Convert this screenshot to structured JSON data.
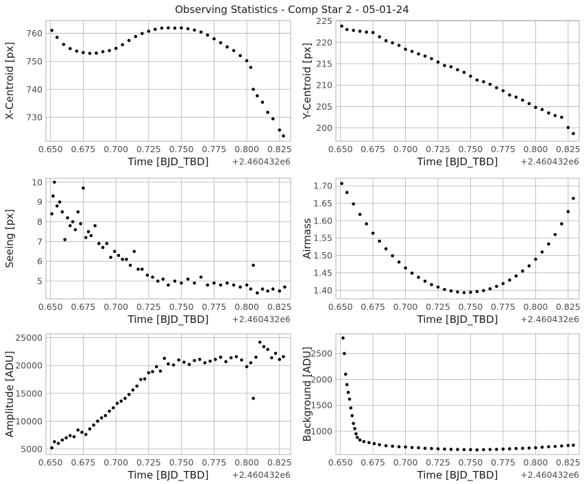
{
  "figure": {
    "title": "Observing Statistics - Comp Star 2 - 05-01-24",
    "colors": {
      "points": "#000000",
      "grid": "#b0b0b0",
      "text": "#1a1a1a",
      "tick_text": "#4a4a4a"
    }
  },
  "chart_data": [
    {
      "type": "scatter",
      "xlabel": "Time [BJD_TBD]",
      "ylabel": "X-Centroid [px]",
      "x_offset_label": "+2.460432e6",
      "xlim": [
        0.6465,
        0.8335
      ],
      "ylim": [
        721.5,
        764.5
      ],
      "xticks": [
        0.65,
        0.675,
        0.7,
        0.725,
        0.75,
        0.775,
        0.8,
        0.825
      ],
      "xtick_labels": [
        "0.650",
        "0.675",
        "0.700",
        "0.725",
        "0.750",
        "0.775",
        "0.800",
        "0.825"
      ],
      "yticks": [
        730,
        740,
        750,
        760
      ],
      "ytick_labels": [
        "730",
        "740",
        "750",
        "760"
      ],
      "grid": true,
      "x": [
        0.651,
        0.655,
        0.66,
        0.665,
        0.67,
        0.675,
        0.68,
        0.685,
        0.69,
        0.695,
        0.7,
        0.705,
        0.71,
        0.715,
        0.72,
        0.725,
        0.73,
        0.735,
        0.74,
        0.745,
        0.75,
        0.755,
        0.76,
        0.765,
        0.77,
        0.775,
        0.78,
        0.785,
        0.79,
        0.795,
        0.8,
        0.803,
        0.805,
        0.808,
        0.812,
        0.816,
        0.82,
        0.825,
        0.828
      ],
      "y": [
        761,
        758.5,
        756,
        754.5,
        753.6,
        753.1,
        752.8,
        752.9,
        753.4,
        753.8,
        754.6,
        755.9,
        757.4,
        758.8,
        759.9,
        760.7,
        761.4,
        761.8,
        761.9,
        761.8,
        761.9,
        761.6,
        761.1,
        760.4,
        759.3,
        758,
        756.6,
        755.1,
        753.8,
        752,
        750.2,
        747.8,
        740,
        737.7,
        735.4,
        731.8,
        729.5,
        725.5,
        723.4
      ]
    },
    {
      "type": "scatter",
      "xlabel": "Time [BJD_TBD]",
      "ylabel": "Y-Centroid [px]",
      "x_offset_label": "+2.460432e6",
      "xlim": [
        0.6465,
        0.8335
      ],
      "ylim": [
        196.9,
        225.1
      ],
      "xticks": [
        0.65,
        0.675,
        0.7,
        0.725,
        0.75,
        0.775,
        0.8,
        0.825
      ],
      "xtick_labels": [
        "0.650",
        "0.675",
        "0.700",
        "0.725",
        "0.750",
        "0.775",
        "0.800",
        "0.825"
      ],
      "yticks": [
        200,
        205,
        210,
        215,
        220,
        225
      ],
      "ytick_labels": [
        "200",
        "205",
        "210",
        "215",
        "220",
        "225"
      ],
      "grid": true,
      "x": [
        0.651,
        0.655,
        0.66,
        0.665,
        0.67,
        0.675,
        0.68,
        0.685,
        0.69,
        0.695,
        0.7,
        0.705,
        0.71,
        0.715,
        0.72,
        0.725,
        0.73,
        0.735,
        0.74,
        0.745,
        0.75,
        0.755,
        0.76,
        0.765,
        0.77,
        0.775,
        0.78,
        0.785,
        0.79,
        0.795,
        0.8,
        0.805,
        0.81,
        0.815,
        0.82,
        0.825,
        0.829
      ],
      "y": [
        223.8,
        223,
        222.8,
        222.6,
        222.4,
        222.3,
        221.3,
        220.4,
        219.9,
        219.3,
        218.4,
        217.9,
        217.3,
        216.8,
        216.2,
        215.4,
        214.6,
        214.3,
        213.6,
        213,
        212.1,
        211.2,
        210.8,
        210.2,
        209.4,
        208.7,
        207.7,
        207.2,
        206.5,
        205.7,
        204.8,
        204.3,
        203.5,
        202.9,
        202.5,
        200.1,
        198.7
      ]
    },
    {
      "type": "scatter",
      "xlabel": "Time [BJD_TBD]",
      "ylabel": "Seeing [px]",
      "x_offset_label": "+2.460432e6",
      "xlim": [
        0.6465,
        0.8335
      ],
      "ylim": [
        4.1,
        10.2
      ],
      "xticks": [
        0.65,
        0.675,
        0.7,
        0.725,
        0.75,
        0.775,
        0.8,
        0.825
      ],
      "xtick_labels": [
        "0.650",
        "0.675",
        "0.700",
        "0.725",
        "0.750",
        "0.775",
        "0.800",
        "0.825"
      ],
      "yticks": [
        5,
        6,
        7,
        8,
        9,
        10
      ],
      "ytick_labels": [
        "5",
        "6",
        "7",
        "8",
        "9",
        "10"
      ],
      "grid": true,
      "x": [
        0.651,
        0.652,
        0.653,
        0.655,
        0.657,
        0.659,
        0.661,
        0.663,
        0.665,
        0.667,
        0.669,
        0.671,
        0.673,
        0.675,
        0.677,
        0.679,
        0.681,
        0.684,
        0.687,
        0.69,
        0.693,
        0.696,
        0.699,
        0.702,
        0.705,
        0.708,
        0.711,
        0.714,
        0.717,
        0.72,
        0.724,
        0.728,
        0.732,
        0.736,
        0.74,
        0.745,
        0.75,
        0.755,
        0.76,
        0.765,
        0.77,
        0.775,
        0.78,
        0.785,
        0.79,
        0.795,
        0.8,
        0.803,
        0.805,
        0.808,
        0.812,
        0.816,
        0.82,
        0.825,
        0.829
      ],
      "y": [
        8.4,
        9.3,
        10,
        8.8,
        9,
        8.5,
        7.1,
        8.2,
        7.8,
        8,
        7.6,
        8.5,
        7.9,
        9.7,
        7.2,
        7.5,
        7.3,
        7.8,
        6.9,
        6.7,
        6.9,
        6.2,
        6.5,
        6.3,
        6.1,
        6.1,
        5.8,
        6.5,
        5.6,
        5.6,
        5.3,
        5.2,
        5,
        5.1,
        4.8,
        5,
        4.9,
        5.1,
        4.9,
        5.2,
        4.8,
        4.9,
        4.8,
        4.9,
        4.8,
        4.7,
        4.8,
        4.6,
        5.8,
        4.4,
        4.6,
        4.5,
        4.6,
        4.5,
        4.7
      ]
    },
    {
      "type": "scatter",
      "xlabel": "Time [BJD_TBD]",
      "ylabel": "Airmass",
      "x_offset_label": "+2.460432e6",
      "xlim": [
        0.6465,
        0.8335
      ],
      "ylim": [
        1.375,
        1.722
      ],
      "xticks": [
        0.65,
        0.675,
        0.7,
        0.725,
        0.75,
        0.775,
        0.8,
        0.825
      ],
      "xtick_labels": [
        "0.650",
        "0.675",
        "0.700",
        "0.725",
        "0.750",
        "0.775",
        "0.800",
        "0.825"
      ],
      "yticks": [
        1.4,
        1.45,
        1.5,
        1.55,
        1.6,
        1.65,
        1.7
      ],
      "ytick_labels": [
        "1.40",
        "1.45",
        "1.50",
        "1.55",
        "1.60",
        "1.65",
        "1.70"
      ],
      "grid": true,
      "x": [
        0.651,
        0.655,
        0.66,
        0.665,
        0.67,
        0.675,
        0.68,
        0.685,
        0.69,
        0.695,
        0.7,
        0.705,
        0.71,
        0.715,
        0.72,
        0.725,
        0.73,
        0.735,
        0.74,
        0.745,
        0.75,
        0.755,
        0.76,
        0.765,
        0.77,
        0.775,
        0.78,
        0.785,
        0.79,
        0.795,
        0.8,
        0.805,
        0.81,
        0.815,
        0.82,
        0.825,
        0.829
      ],
      "y": [
        1.707,
        1.681,
        1.648,
        1.618,
        1.591,
        1.564,
        1.541,
        1.519,
        1.499,
        1.481,
        1.464,
        1.449,
        1.437,
        1.426,
        1.416,
        1.409,
        1.402,
        1.398,
        1.395,
        1.393,
        1.394,
        1.396,
        1.399,
        1.404,
        1.411,
        1.419,
        1.429,
        1.441,
        1.455,
        1.47,
        1.489,
        1.51,
        1.533,
        1.56,
        1.591,
        1.626,
        1.664
      ]
    },
    {
      "type": "scatter",
      "xlabel": "Time [BJD_TBD]",
      "ylabel": "Amplitude [ADU]",
      "x_offset_label": "+2.460432e6",
      "xlim": [
        0.6465,
        0.8335
      ],
      "ylim": [
        4000,
        25700
      ],
      "xticks": [
        0.65,
        0.675,
        0.7,
        0.725,
        0.75,
        0.775,
        0.8,
        0.825
      ],
      "xtick_labels": [
        "0.650",
        "0.675",
        "0.700",
        "0.725",
        "0.750",
        "0.775",
        "0.800",
        "0.825"
      ],
      "yticks": [
        5000,
        10000,
        15000,
        20000,
        25000
      ],
      "ytick_labels": [
        "5000",
        "10000",
        "15000",
        "20000",
        "25000"
      ],
      "grid": true,
      "x": [
        0.651,
        0.653,
        0.656,
        0.659,
        0.662,
        0.665,
        0.668,
        0.671,
        0.674,
        0.677,
        0.68,
        0.683,
        0.686,
        0.689,
        0.692,
        0.695,
        0.698,
        0.701,
        0.704,
        0.707,
        0.71,
        0.713,
        0.716,
        0.719,
        0.722,
        0.725,
        0.728,
        0.731,
        0.734,
        0.737,
        0.74,
        0.744,
        0.748,
        0.752,
        0.756,
        0.76,
        0.764,
        0.768,
        0.772,
        0.776,
        0.78,
        0.784,
        0.788,
        0.792,
        0.796,
        0.8,
        0.803,
        0.805,
        0.807,
        0.81,
        0.813,
        0.816,
        0.819,
        0.822,
        0.825,
        0.828
      ],
      "y": [
        5200,
        6300,
        6000,
        6600,
        7000,
        7400,
        7200,
        8400,
        8000,
        7600,
        8600,
        9300,
        10000,
        10600,
        11000,
        11800,
        12400,
        13200,
        13600,
        14100,
        14800,
        15600,
        16300,
        17500,
        17600,
        18700,
        18900,
        19800,
        19000,
        21300,
        20300,
        20100,
        21000,
        20600,
        20200,
        20900,
        21100,
        20500,
        20800,
        21100,
        21500,
        20700,
        21400,
        21600,
        21000,
        19800,
        20500,
        14100,
        21500,
        24200,
        23400,
        22900,
        21400,
        22200,
        21100,
        21600
      ]
    },
    {
      "type": "scatter",
      "xlabel": "Time [BJD_TBD]",
      "ylabel": "Background [ADU]",
      "x_offset_label": "+2.460432e6",
      "xlim": [
        0.6465,
        0.8335
      ],
      "ylim": [
        550,
        2880
      ],
      "xticks": [
        0.65,
        0.675,
        0.7,
        0.725,
        0.75,
        0.775,
        0.8,
        0.825
      ],
      "xtick_labels": [
        "0.650",
        "0.675",
        "0.700",
        "0.725",
        "0.750",
        "0.775",
        "0.800",
        "0.825"
      ],
      "yticks": [
        1000,
        1500,
        2000,
        2500
      ],
      "ytick_labels": [
        "1000",
        "1500",
        "2000",
        "2500"
      ],
      "grid": true,
      "x": [
        0.652,
        0.653,
        0.654,
        0.655,
        0.656,
        0.657,
        0.658,
        0.659,
        0.66,
        0.661,
        0.662,
        0.663,
        0.665,
        0.668,
        0.672,
        0.676,
        0.68,
        0.685,
        0.69,
        0.695,
        0.7,
        0.705,
        0.71,
        0.715,
        0.72,
        0.725,
        0.73,
        0.735,
        0.74,
        0.745,
        0.75,
        0.755,
        0.76,
        0.765,
        0.77,
        0.775,
        0.78,
        0.785,
        0.79,
        0.795,
        0.8,
        0.805,
        0.81,
        0.815,
        0.82,
        0.825,
        0.829
      ],
      "y": [
        2800,
        2500,
        2100,
        1900,
        1750,
        1620,
        1450,
        1300,
        1150,
        1050,
        950,
        880,
        830,
        800,
        780,
        760,
        740,
        720,
        710,
        700,
        695,
        685,
        680,
        670,
        665,
        660,
        655,
        650,
        648,
        645,
        645,
        640,
        645,
        648,
        650,
        655,
        660,
        665,
        670,
        675,
        680,
        690,
        700,
        705,
        715,
        725,
        730
      ]
    }
  ]
}
